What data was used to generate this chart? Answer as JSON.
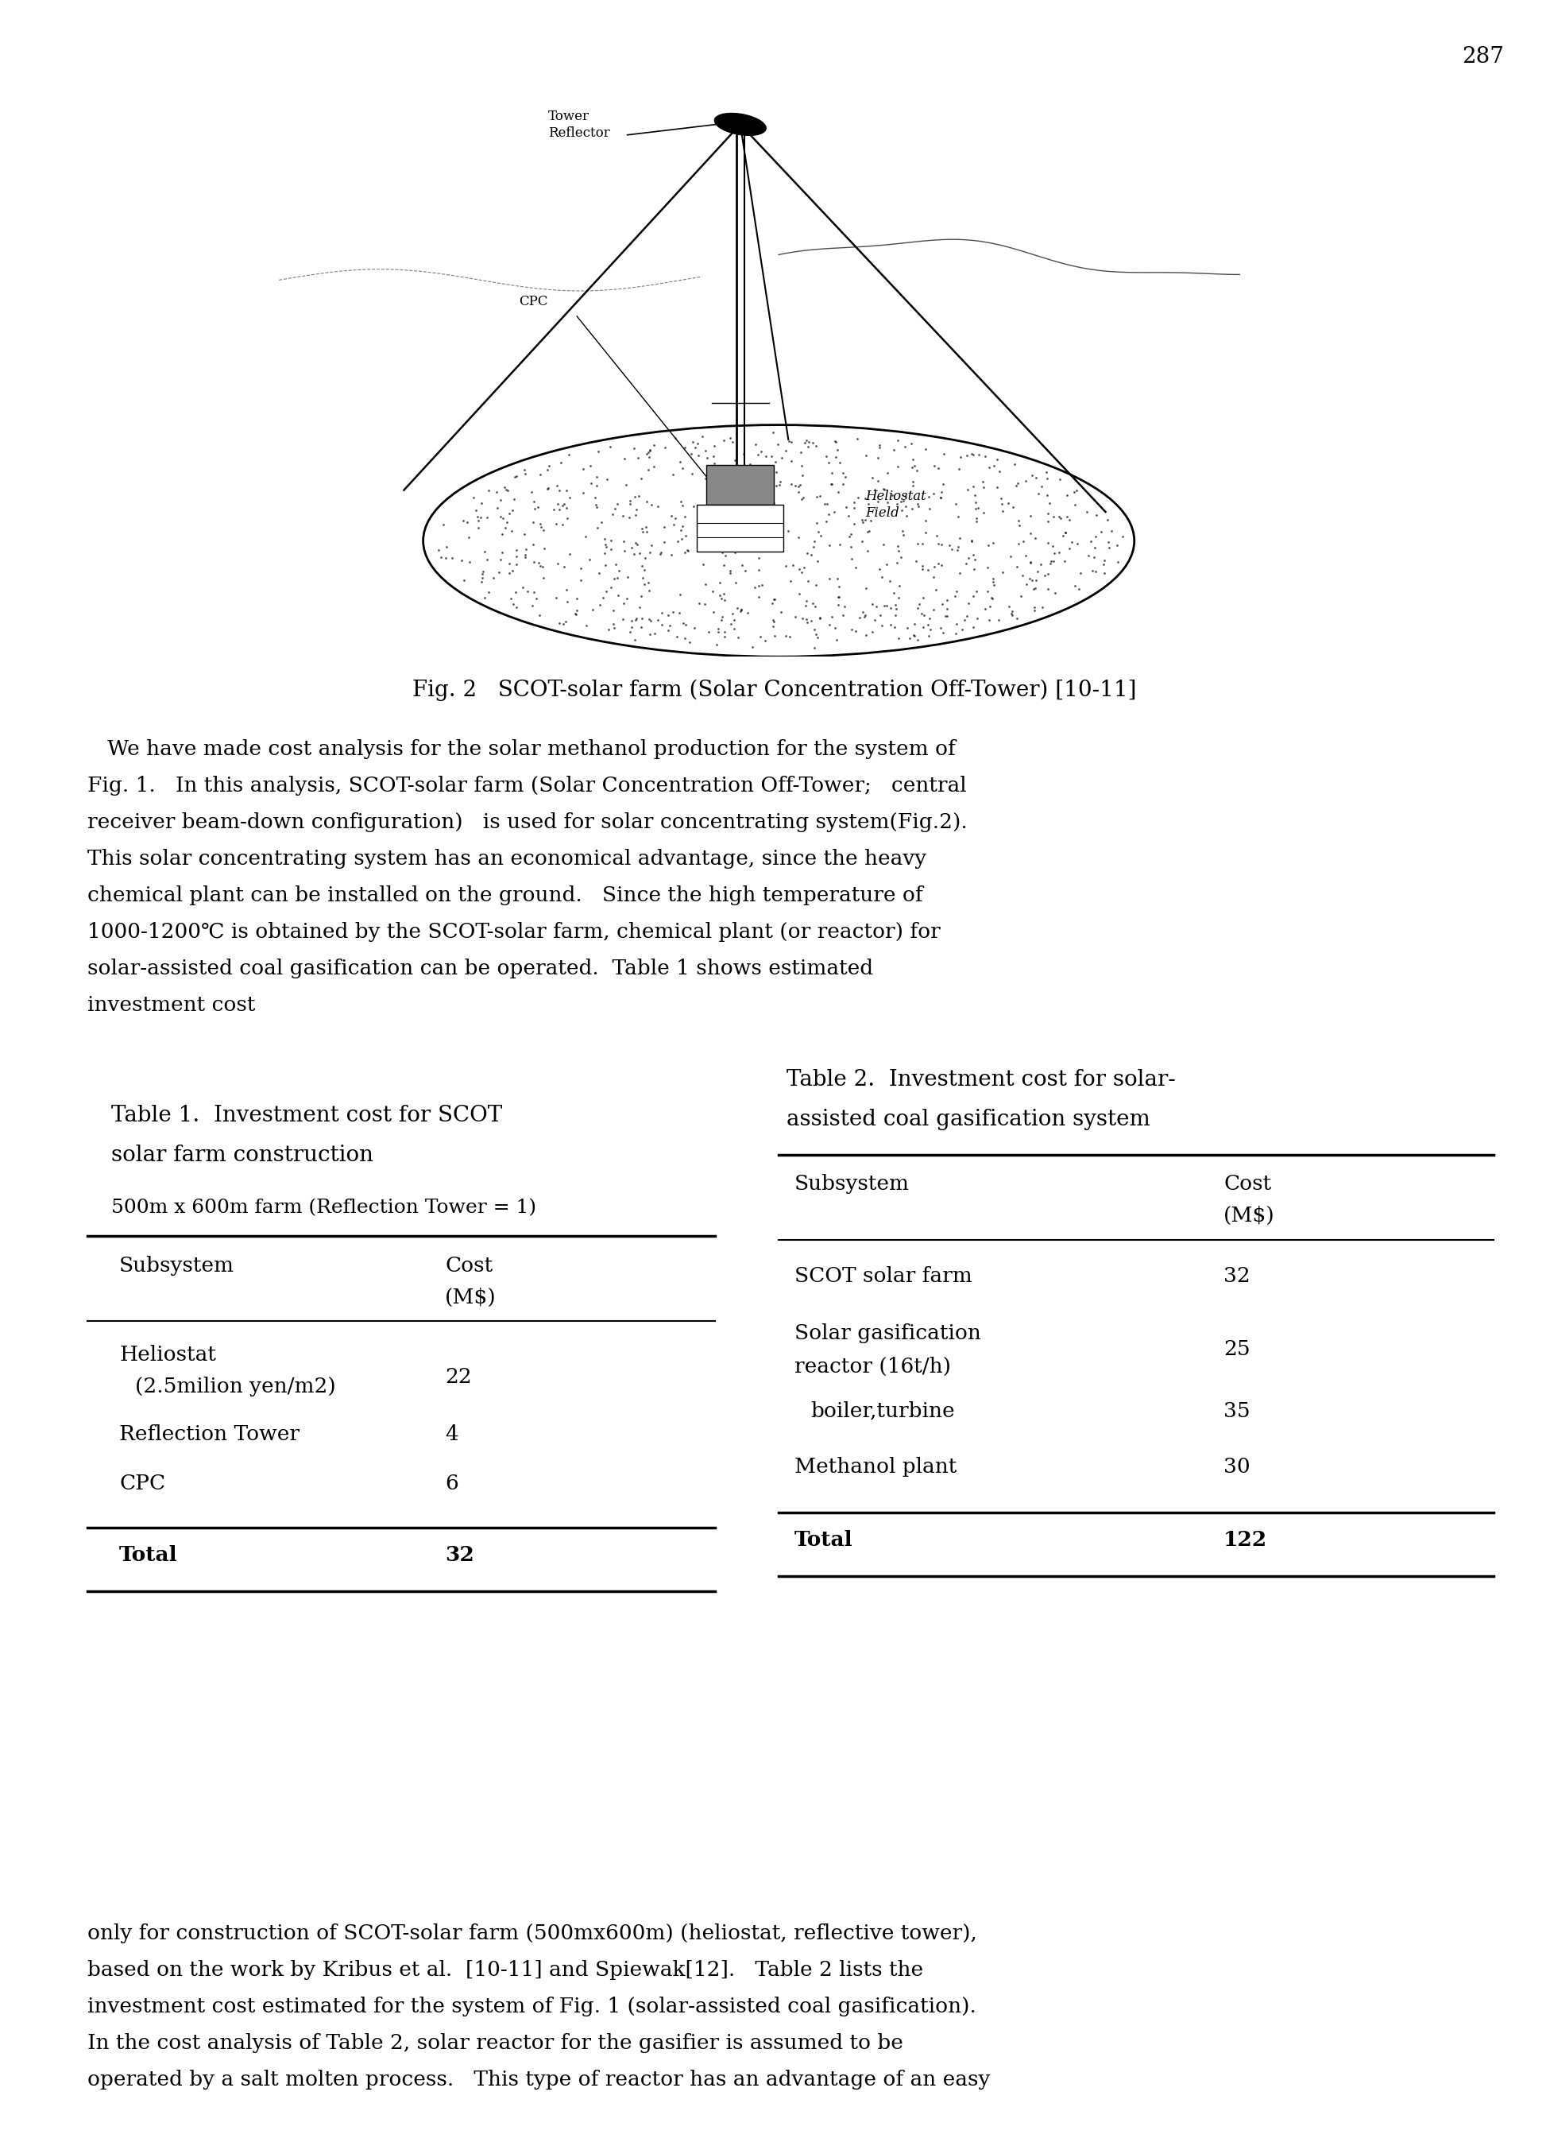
{
  "page_number": "287",
  "fig_caption": "Fig. 2   SCOT-solar farm (Solar Concentration Off-Tower) [10-11]",
  "para1_lines": [
    "   We have made cost analysis for the solar methanol production for the system of",
    "Fig. 1.   In this analysis, SCOT-solar farm (Solar Concentration Off-Tower;   central",
    "receiver beam-down configuration)   is used for solar concentrating system(Fig.2).",
    "This solar concentrating system has an economical advantage, since the heavy",
    "chemical plant can be installed on the ground.   Since the high temperature of",
    "1000-1200℃ is obtained by the SCOT-solar farm, chemical plant (or reactor) for",
    "solar-assisted coal gasification can be operated.  Table 1 shows estimated",
    "investment cost"
  ],
  "table1_title_line1": "Table 1.  Investment cost for SCOT",
  "table1_title_line2": "solar farm construction",
  "table1_subtitle": "500m x 600m farm (Reflection Tower = 1)",
  "table2_title_line1": "Table 2.  Investment cost for solar-",
  "table2_title_line2": "assisted coal gasification system",
  "para2_lines": [
    "only for construction of SCOT-solar farm (500mx600m) (heliostat, reflective tower),",
    "based on the work by Kribus et al.  [10-11] and Spiewak[12].   Table 2 lists the",
    "investment cost estimated for the system of Fig. 1 (solar-assisted coal gasification).",
    "In the cost analysis of Table 2, solar reactor for the gasifier is assumed to be",
    "operated by a salt molten process.   This type of reactor has an advantage of an easy"
  ],
  "bg_color": "#ffffff"
}
